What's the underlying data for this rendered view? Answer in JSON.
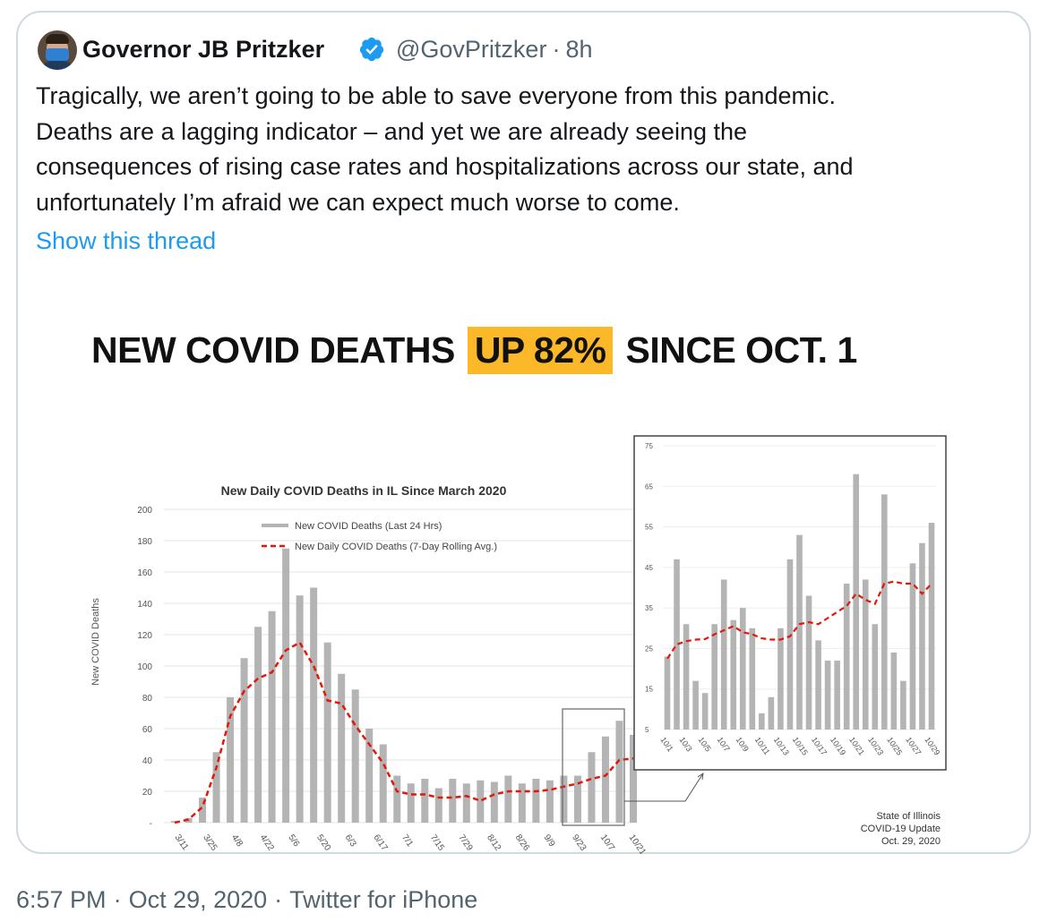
{
  "tweet": {
    "author_name": "Governor JB Pritzker",
    "handle": "@GovPritzker",
    "time_ago": "8h",
    "lines": [
      "Tragically, we aren’t going to be able to save everyone from this pandemic.",
      "Deaths are a lagging indicator – and yet we are already seeing the",
      "consequences of rising case rates and hospitalizations across our state, and",
      "unfortunately I’m afraid we can expect much worse to come."
    ],
    "show_thread": "Show this thread",
    "timestamp": "6:57 PM · Oct 29, 2020 · Twitter for iPhone",
    "footer_time": "6:57 PM",
    "footer_date": "Oct 29, 2020",
    "footer_source": "Twitter for iPhone"
  },
  "graphic": {
    "headline_before": "NEW COVID DEATHS",
    "headline_highlight": "UP 82%",
    "headline_after": "SINCE OCT. 1",
    "highlight_color": "#fbb829",
    "credit": [
      "State of Illinois",
      "COVID-19 Update",
      "Oct. 29, 2020"
    ]
  },
  "colors": {
    "bar": "#b4b4b4",
    "avg_line": "#e3170a",
    "link": "#1d9bf0",
    "verified": "#1d9bf0"
  },
  "chart_data": [
    {
      "type": "bar",
      "title": "New Daily COVID Deaths in IL Since March 2020",
      "ylabel": "New COVID Deaths",
      "xlabel": "",
      "ylim": [
        0,
        200
      ],
      "yticks": [
        "200",
        "180",
        "160",
        "140",
        "120",
        "100",
        "80",
        "60",
        "40",
        "20",
        "-"
      ],
      "xticks": [
        "3/11",
        "3/25",
        "4/8",
        "4/22",
        "5/6",
        "5/20",
        "6/3",
        "6/17",
        "7/1",
        "7/15",
        "7/29",
        "8/12",
        "8/26",
        "9/9",
        "9/23",
        "10/7",
        "10/21"
      ],
      "legend": [
        "New COVID Deaths (Last 24 Hrs)",
        "New Daily COVID Deaths (7-Day Rolling Avg.)"
      ],
      "legend_position": "top",
      "series": [
        {
          "name": "New COVID Deaths (Last 24 Hrs)",
          "kind": "bar",
          "x": [
            "3/11",
            "3/18",
            "3/25",
            "4/1",
            "4/8",
            "4/15",
            "4/22",
            "4/29",
            "5/6",
            "5/13",
            "5/20",
            "5/27",
            "6/3",
            "6/10",
            "6/17",
            "6/24",
            "7/1",
            "7/8",
            "7/15",
            "7/22",
            "7/29",
            "8/5",
            "8/12",
            "8/19",
            "8/26",
            "9/2",
            "9/9",
            "9/16",
            "9/23",
            "9/30",
            "10/7",
            "10/14",
            "10/21",
            "10/29"
          ],
          "values": [
            1,
            3,
            16,
            45,
            80,
            105,
            125,
            135,
            175,
            145,
            150,
            115,
            95,
            85,
            60,
            50,
            30,
            25,
            28,
            22,
            28,
            25,
            27,
            26,
            30,
            25,
            28,
            27,
            30,
            30,
            45,
            55,
            65,
            56
          ]
        },
        {
          "name": "New Daily COVID Deaths (7-Day Rolling Avg.)",
          "kind": "line",
          "x": [
            "3/11",
            "3/18",
            "3/25",
            "4/1",
            "4/8",
            "4/15",
            "4/22",
            "4/29",
            "5/6",
            "5/13",
            "5/20",
            "5/27",
            "6/3",
            "6/10",
            "6/17",
            "6/24",
            "7/1",
            "7/8",
            "7/15",
            "7/22",
            "7/29",
            "8/5",
            "8/12",
            "8/19",
            "8/26",
            "9/2",
            "9/9",
            "9/16",
            "9/23",
            "9/30",
            "10/7",
            "10/14",
            "10/21",
            "10/29"
          ],
          "values": [
            0,
            2,
            10,
            35,
            68,
            84,
            92,
            96,
            110,
            115,
            100,
            78,
            76,
            62,
            50,
            38,
            20,
            18,
            18,
            16,
            16,
            17,
            14,
            18,
            20,
            20,
            20,
            21,
            23,
            25,
            28,
            30,
            40,
            41
          ]
        }
      ]
    },
    {
      "type": "bar",
      "title": "",
      "xlabel": "",
      "ylabel": "",
      "ylim": [
        5,
        75
      ],
      "yticks": [
        "75",
        "65",
        "55",
        "45",
        "35",
        "25",
        "15",
        "5"
      ],
      "xticks": [
        "10/1",
        "10/3",
        "10/5",
        "10/7",
        "10/9",
        "10/11",
        "10/13",
        "10/15",
        "10/17",
        "10/19",
        "10/21",
        "10/23",
        "10/25",
        "10/27",
        "10/29"
      ],
      "series": [
        {
          "name": "New COVID Deaths (Last 24 Hrs)",
          "kind": "bar",
          "x": [
            "10/1",
            "10/2",
            "10/3",
            "10/4",
            "10/5",
            "10/6",
            "10/7",
            "10/8",
            "10/9",
            "10/10",
            "10/11",
            "10/12",
            "10/13",
            "10/14",
            "10/15",
            "10/16",
            "10/17",
            "10/18",
            "10/19",
            "10/20",
            "10/21",
            "10/22",
            "10/23",
            "10/24",
            "10/25",
            "10/26",
            "10/27",
            "10/28",
            "10/29"
          ],
          "values": [
            23,
            47,
            31,
            17,
            14,
            31,
            42,
            32,
            35,
            30,
            9,
            13,
            30,
            47,
            53,
            38,
            27,
            22,
            22,
            41,
            68,
            42,
            31,
            63,
            24,
            17,
            46,
            51,
            56
          ]
        },
        {
          "name": "New Daily COVID Deaths (7-Day Rolling Avg.)",
          "kind": "line",
          "x": [
            "10/1",
            "10/2",
            "10/3",
            "10/4",
            "10/5",
            "10/6",
            "10/7",
            "10/8",
            "10/9",
            "10/10",
            "10/11",
            "10/12",
            "10/13",
            "10/14",
            "10/15",
            "10/16",
            "10/17",
            "10/18",
            "10/19",
            "10/20",
            "10/21",
            "10/22",
            "10/23",
            "10/24",
            "10/25",
            "10/26",
            "10/27",
            "10/28",
            "10/29"
          ],
          "values": [
            22.5,
            26,
            26.8,
            27.2,
            27.3,
            28.5,
            29.5,
            30.5,
            29,
            28.5,
            27.5,
            27.2,
            27.2,
            28,
            31,
            31.5,
            31,
            32.5,
            34,
            35.5,
            38.5,
            37,
            36,
            41,
            41.5,
            41,
            41,
            38.5,
            41
          ]
        }
      ]
    }
  ]
}
